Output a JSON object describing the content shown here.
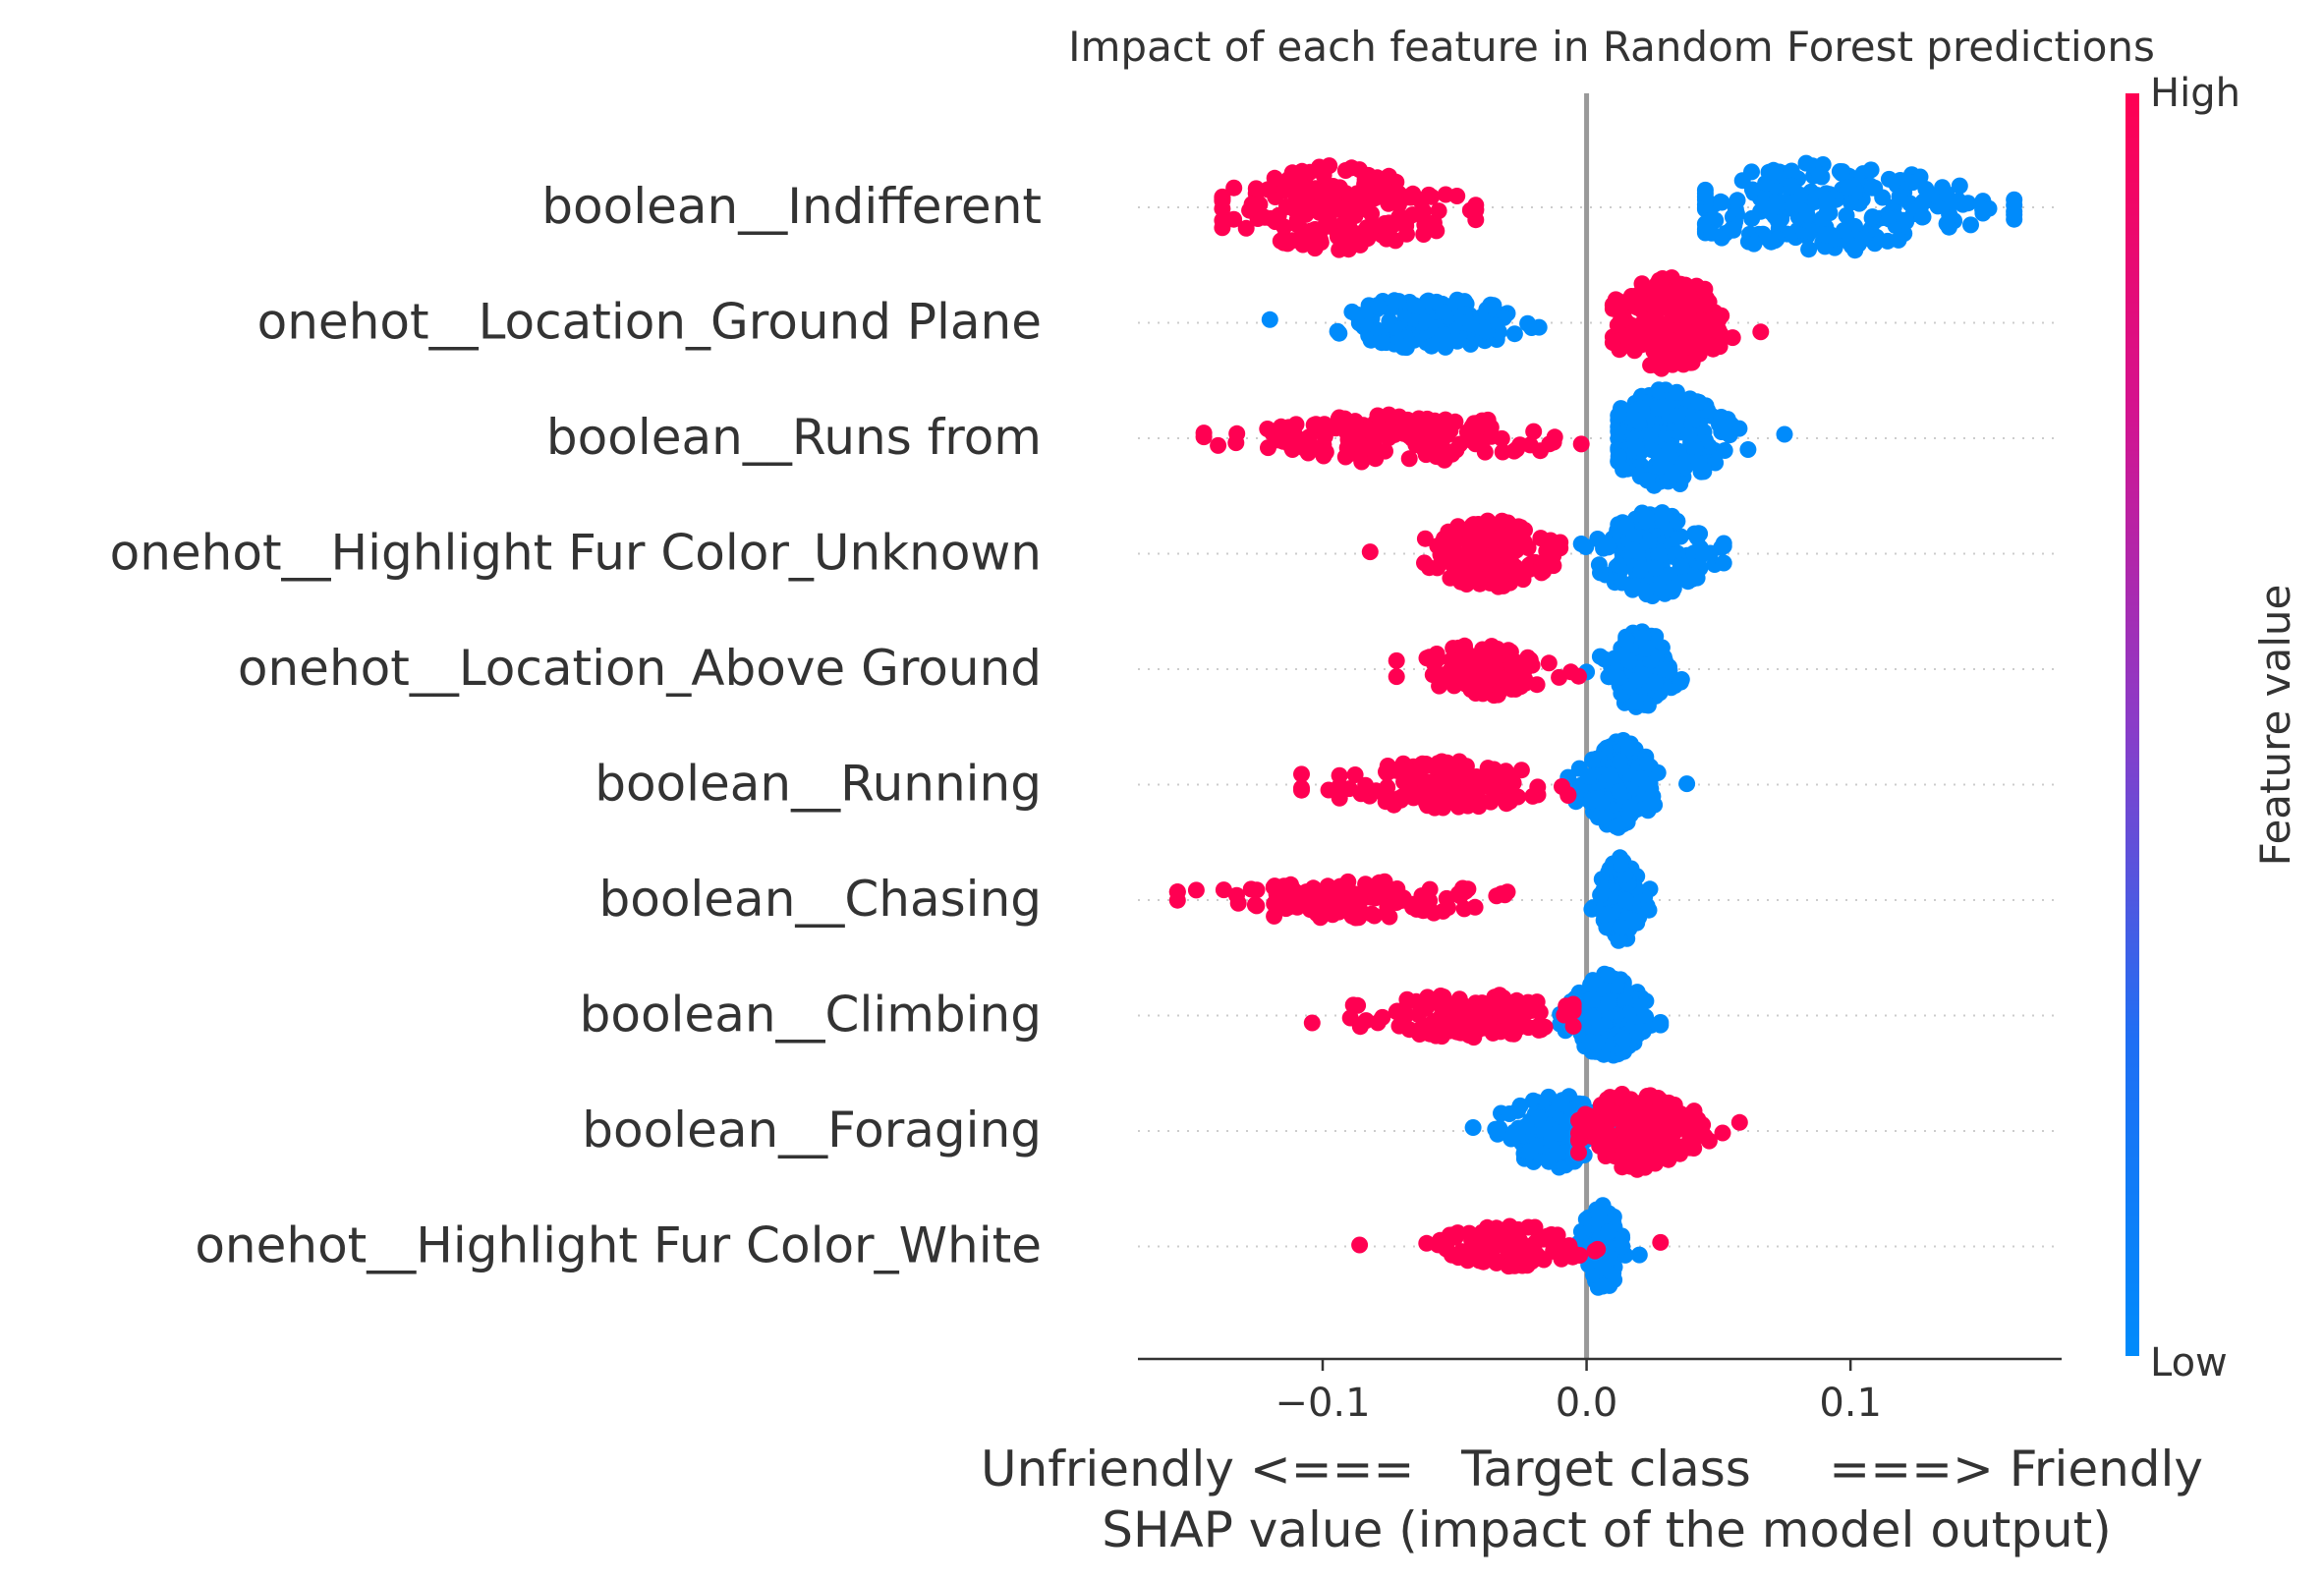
{
  "chart_data": {
    "type": "scatter",
    "subtype": "shap-beeswarm",
    "title": "Impact of each feature in Random Forest predictions",
    "xlabel_line1": "Unfriendly <===   Target class     ===> Friendly",
    "xlabel_line2": "SHAP value (impact of the model output)",
    "xlim": [
      -0.17,
      0.18
    ],
    "xticks": [
      {
        "value": -0.1,
        "label": "−0.1"
      },
      {
        "value": 0.0,
        "label": "0.0"
      },
      {
        "value": 0.1,
        "label": "0.1"
      }
    ],
    "colorbar": {
      "label": "Feature value",
      "high": "High",
      "low": "Low",
      "high_color": "#ff0052",
      "low_color": "#008bfb"
    },
    "reference_line": 0.0,
    "grid": false,
    "features": [
      {
        "name": "boolean__Indifferent",
        "high": {
          "min": -0.138,
          "max": -0.042,
          "center": -0.095,
          "spread": 0.022,
          "count": 190,
          "thick": 0.85
        },
        "low": {
          "min": 0.045,
          "max": 0.162,
          "center": 0.09,
          "spread": 0.028,
          "count": 230,
          "thick": 0.9
        }
      },
      {
        "name": "onehot__Location_Ground Plane",
        "high": {
          "min": 0.01,
          "max": 0.066,
          "center": 0.031,
          "spread": 0.011,
          "count": 190,
          "thick": 0.95
        },
        "low": {
          "min": -0.12,
          "max": -0.018,
          "center": -0.06,
          "spread": 0.016,
          "count": 150,
          "thick": 0.45
        }
      },
      {
        "name": "boolean__Runs from",
        "high": {
          "min": -0.145,
          "max": -0.002,
          "center": -0.075,
          "spread": 0.028,
          "count": 160,
          "thick": 0.4
        },
        "low": {
          "min": 0.012,
          "max": 0.075,
          "center": 0.03,
          "spread": 0.011,
          "count": 230,
          "thick": 1.0
        }
      },
      {
        "name": "onehot__Highlight Fur Color_Unknown",
        "high": {
          "min": -0.082,
          "max": -0.01,
          "center": -0.037,
          "spread": 0.011,
          "count": 150,
          "thick": 0.65
        },
        "low": {
          "min": -0.002,
          "max": 0.052,
          "center": 0.025,
          "spread": 0.01,
          "count": 190,
          "thick": 0.85
        }
      },
      {
        "name": "onehot__Location_Above Ground",
        "high": {
          "min": -0.072,
          "max": -0.003,
          "center": -0.038,
          "spread": 0.011,
          "count": 120,
          "thick": 0.45
        },
        "low": {
          "min": 0.0,
          "max": 0.036,
          "center": 0.02,
          "spread": 0.006,
          "count": 160,
          "thick": 0.8
        }
      },
      {
        "name": "boolean__Running",
        "high": {
          "min": -0.108,
          "max": -0.007,
          "center": -0.055,
          "spread": 0.02,
          "count": 140,
          "thick": 0.4
        },
        "low": {
          "min": -0.007,
          "max": 0.038,
          "center": 0.012,
          "spread": 0.007,
          "count": 190,
          "thick": 0.9
        }
      },
      {
        "name": "boolean__Chasing",
        "high": {
          "min": -0.155,
          "max": -0.03,
          "center": -0.093,
          "spread": 0.025,
          "count": 110,
          "thick": 0.3
        },
        "low": {
          "min": 0.002,
          "max": 0.024,
          "center": 0.013,
          "spread": 0.004,
          "count": 140,
          "thick": 0.85
        }
      },
      {
        "name": "boolean__Climbing",
        "high": {
          "min": -0.104,
          "max": -0.005,
          "center": -0.045,
          "spread": 0.019,
          "count": 140,
          "thick": 0.35
        },
        "low": {
          "min": -0.01,
          "max": 0.028,
          "center": 0.008,
          "spread": 0.007,
          "count": 170,
          "thick": 0.85
        }
      },
      {
        "name": "boolean__Foraging",
        "high": {
          "min": -0.003,
          "max": 0.058,
          "center": 0.018,
          "spread": 0.012,
          "count": 170,
          "thick": 0.75
        },
        "low": {
          "min": -0.043,
          "max": 0.012,
          "center": -0.012,
          "spread": 0.01,
          "count": 140,
          "thick": 0.7
        }
      },
      {
        "name": "onehot__Highlight Fur Color_White",
        "high": {
          "min": -0.086,
          "max": 0.028,
          "center": -0.03,
          "spread": 0.012,
          "count": 110,
          "thick": 0.35
        },
        "low": {
          "min": -0.003,
          "max": 0.02,
          "center": 0.006,
          "spread": 0.004,
          "count": 140,
          "thick": 0.85
        }
      }
    ]
  }
}
